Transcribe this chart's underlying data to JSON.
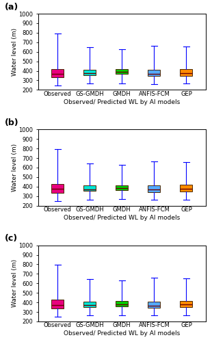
{
  "categories": [
    "Observed",
    "GS-GMDH",
    "GMDH",
    "ANFIS-FCM",
    "GEP"
  ],
  "colors": [
    "#E8007F",
    "#00E5D4",
    "#00CC00",
    "#55AAFF",
    "#FF8C00"
  ],
  "scenarios": [
    {
      "label": "(a)",
      "boxes": [
        {
          "whislo": 248,
          "q1": 335,
          "med": 370,
          "q3": 415,
          "whishi": 795
        },
        {
          "whislo": 265,
          "q1": 355,
          "med": 378,
          "q3": 410,
          "whishi": 645
        },
        {
          "whislo": 268,
          "q1": 365,
          "med": 390,
          "q3": 418,
          "whishi": 630
        },
        {
          "whislo": 262,
          "q1": 348,
          "med": 368,
          "q3": 410,
          "whishi": 662
        },
        {
          "whislo": 265,
          "q1": 350,
          "med": 378,
          "q3": 418,
          "whishi": 655
        }
      ]
    },
    {
      "label": "(b)",
      "boxes": [
        {
          "whislo": 248,
          "q1": 335,
          "med": 375,
          "q3": 428,
          "whishi": 795
        },
        {
          "whislo": 265,
          "q1": 355,
          "med": 372,
          "q3": 410,
          "whishi": 645
        },
        {
          "whislo": 268,
          "q1": 360,
          "med": 385,
          "q3": 415,
          "whishi": 630
        },
        {
          "whislo": 262,
          "q1": 345,
          "med": 368,
          "q3": 410,
          "whishi": 662
        },
        {
          "whislo": 265,
          "q1": 350,
          "med": 378,
          "q3": 418,
          "whishi": 655
        }
      ]
    },
    {
      "label": "(c)",
      "boxes": [
        {
          "whislo": 248,
          "q1": 335,
          "med": 375,
          "q3": 432,
          "whishi": 795
        },
        {
          "whislo": 265,
          "q1": 350,
          "med": 370,
          "q3": 410,
          "whishi": 645
        },
        {
          "whislo": 268,
          "q1": 360,
          "med": 382,
          "q3": 415,
          "whishi": 630
        },
        {
          "whislo": 262,
          "q1": 345,
          "med": 368,
          "q3": 410,
          "whishi": 662
        },
        {
          "whislo": 265,
          "q1": 350,
          "med": 378,
          "q3": 418,
          "whishi": 655
        }
      ]
    }
  ],
  "ylim": [
    200,
    1000
  ],
  "yticks": [
    200,
    300,
    400,
    500,
    600,
    700,
    800,
    900,
    1000
  ],
  "ylabel": "Water level (m)",
  "xlabel": "Observed/ Predicted WL by AI models",
  "label_fontsize": 6.5,
  "tick_fontsize": 6.0,
  "panel_label_fontsize": 9,
  "box_width": 0.38
}
